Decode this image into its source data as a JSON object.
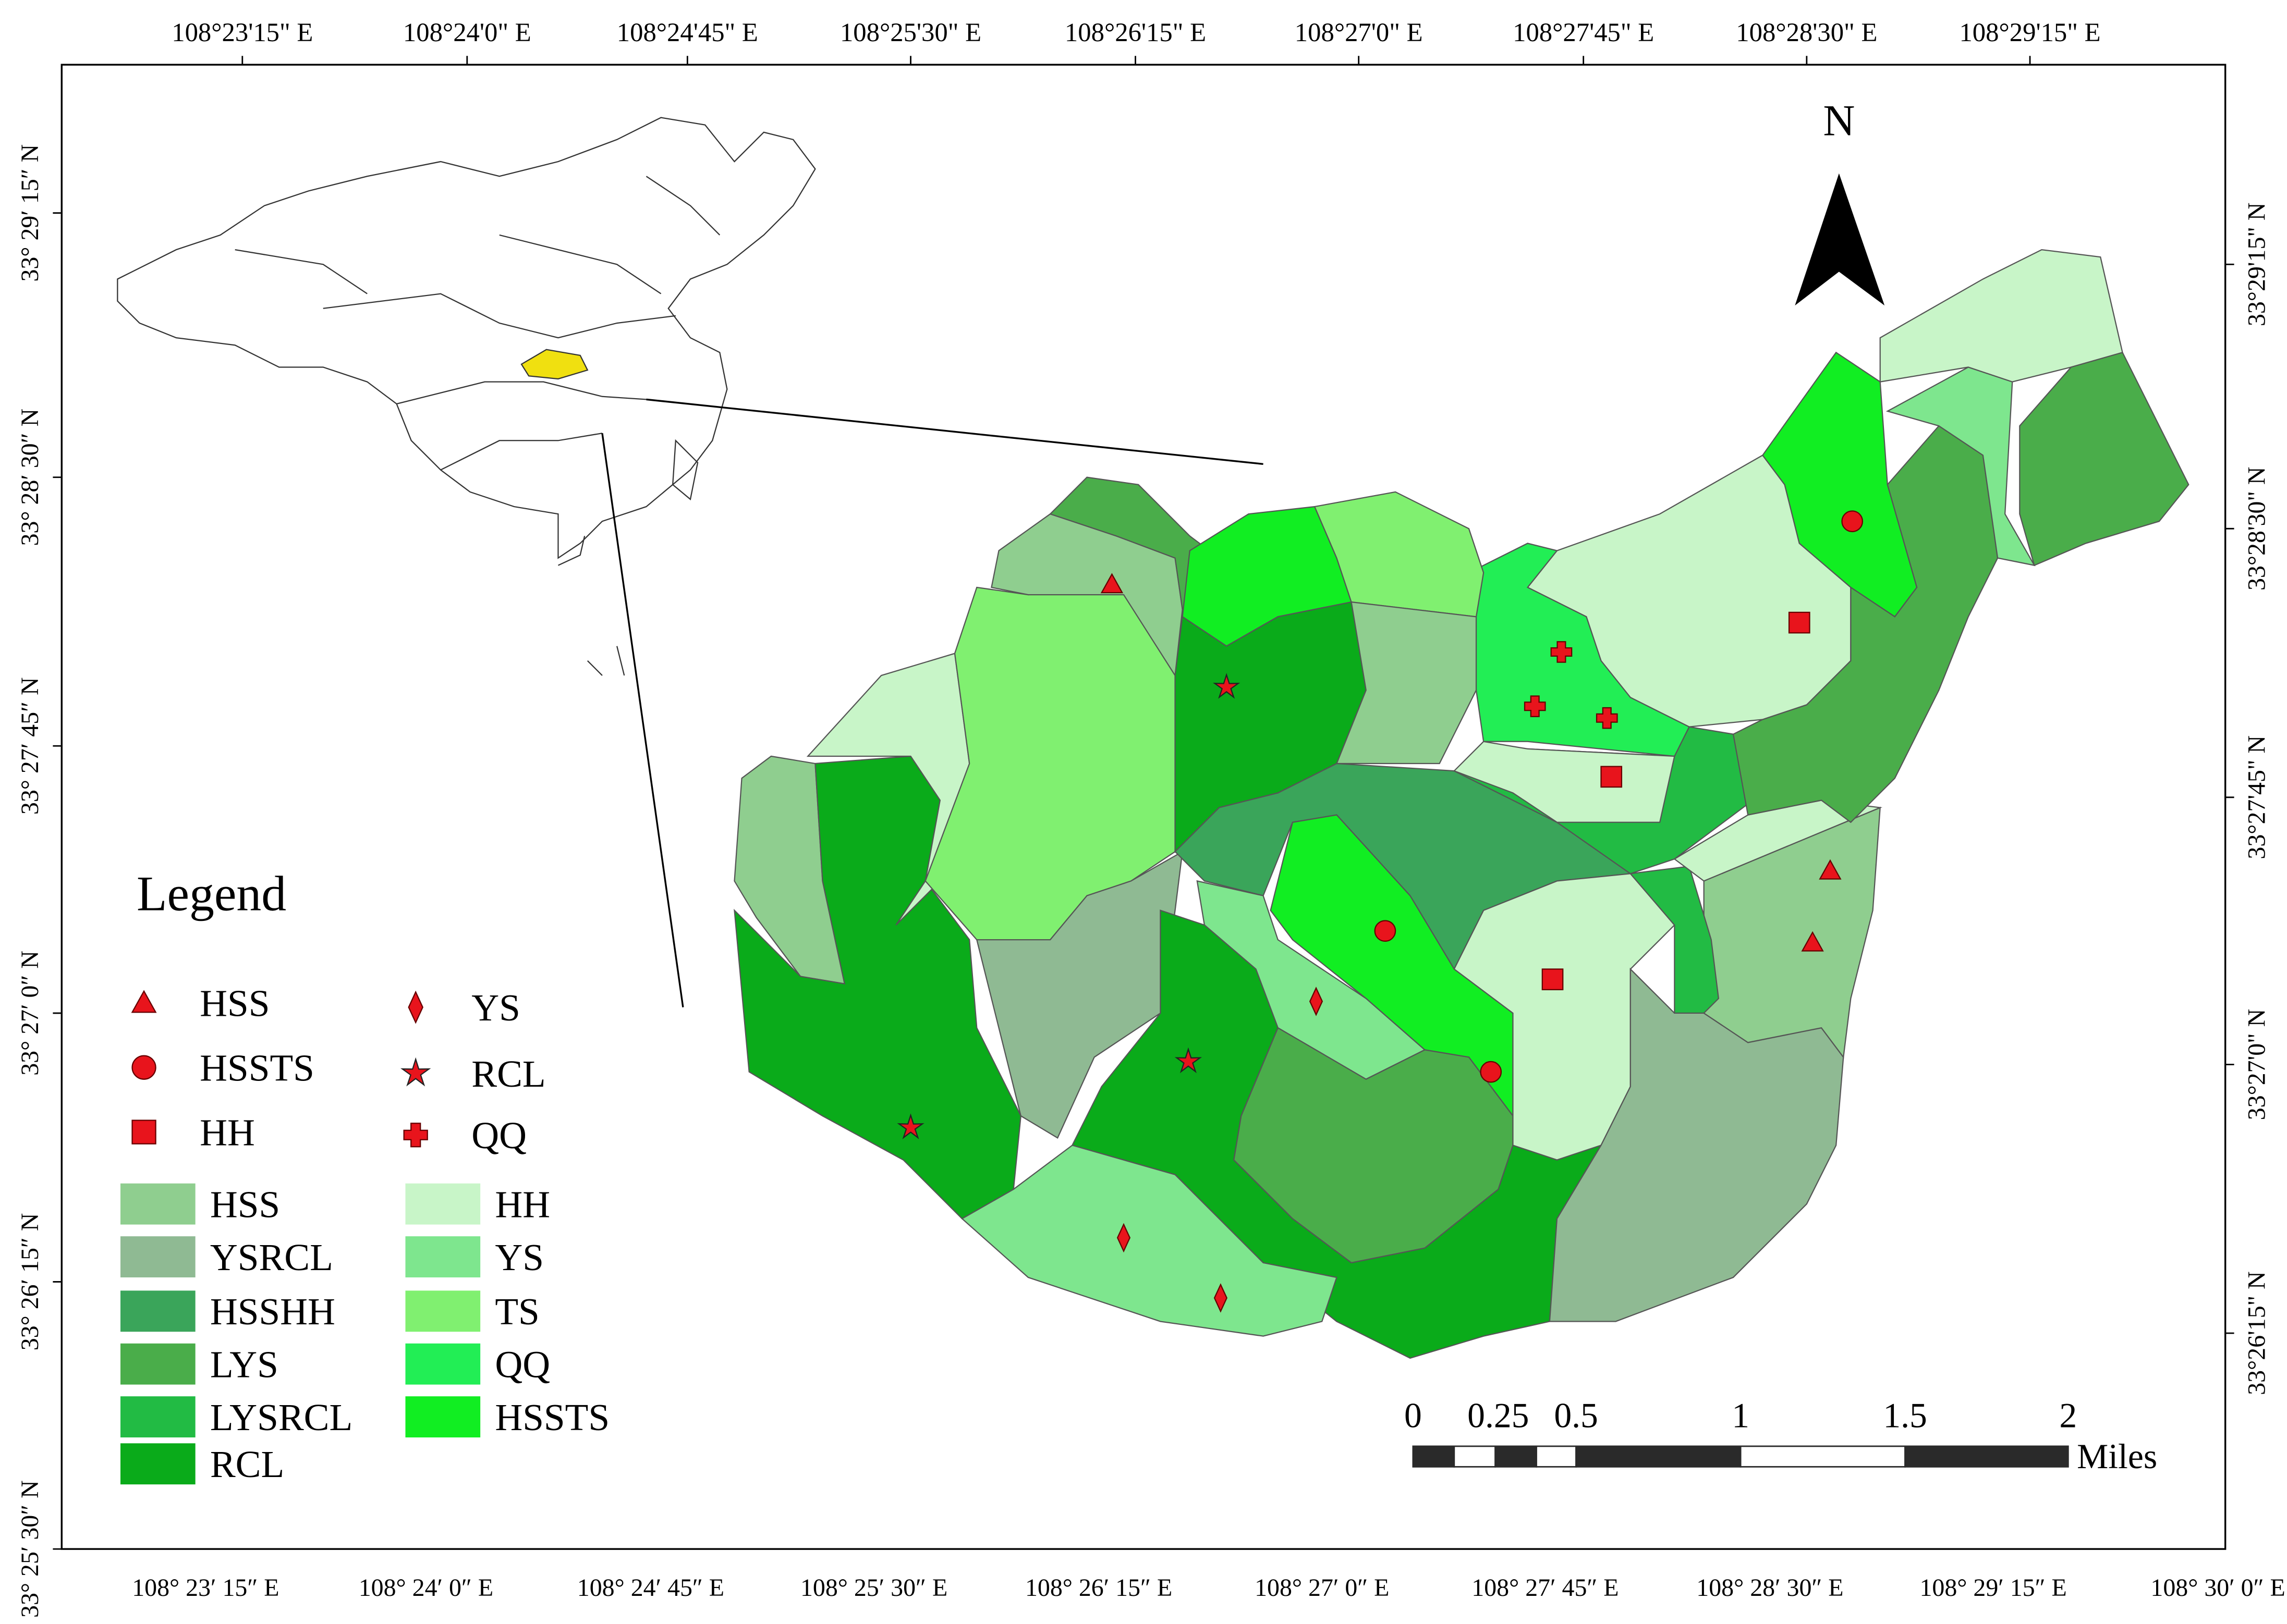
{
  "frame": {
    "top_labels": [
      "108°23'15\" E",
      "108°24'0\" E",
      "108°24'45\" E",
      "108°25'30\" E",
      "108°26'15\" E",
      "108°27'0\" E",
      "108°27'45\" E",
      "108°28'30\" E",
      "108°29'15\" E"
    ],
    "bottom_labels": [
      "108° 23′ 15″ E",
      "108° 24′ 0″ E",
      "108° 24′ 45″ E",
      "108° 25′ 30″ E",
      "108° 26′ 15″ E",
      "108° 27′ 0″ E",
      "108° 27′ 45″ E",
      "108° 28′ 30″ E",
      "108° 29′ 15″ E",
      "108° 30′ 0″ E"
    ],
    "left_labels": [
      "33° 29′ 15″ N",
      "33° 28′ 30″ N",
      "33° 27′ 45″ N",
      "33° 27′ 0″ N",
      "33° 26′ 15″ N",
      "33° 25′ 30″ N"
    ],
    "right_labels": [
      "33°29'15\" N",
      "33°28'30\" N",
      "33°27'45\" N",
      "33°27'0\" N",
      "33°26'15\" N"
    ]
  },
  "north": "N",
  "legend": {
    "title": "Legend",
    "points": [
      "HSS",
      "HSSTS",
      "HH",
      "YS",
      "RCL",
      "QQ"
    ],
    "areas": [
      {
        "label": "HSS",
        "color": "#8fce8f"
      },
      {
        "label": "YSRCL",
        "color": "#8fba93"
      },
      {
        "label": "HSSHH",
        "color": "#3aa55a"
      },
      {
        "label": "LYS",
        "color": "#4aad4a"
      },
      {
        "label": "LYSRCL",
        "color": "#22bb44"
      },
      {
        "label": "RCL",
        "color": "#0aab1a"
      },
      {
        "label": "HH",
        "color": "#c8f5c8"
      },
      {
        "label": "YS",
        "color": "#7ee68e"
      },
      {
        "label": "TS",
        "color": "#80f070"
      },
      {
        "label": "QQ",
        "color": "#22ee55"
      },
      {
        "label": "HSSTS",
        "color": "#11ee22"
      }
    ]
  },
  "scale_bar": {
    "labels": [
      "0",
      "0.25",
      "0.5",
      "1",
      "1.5",
      "2"
    ],
    "unit": "Miles"
  }
}
